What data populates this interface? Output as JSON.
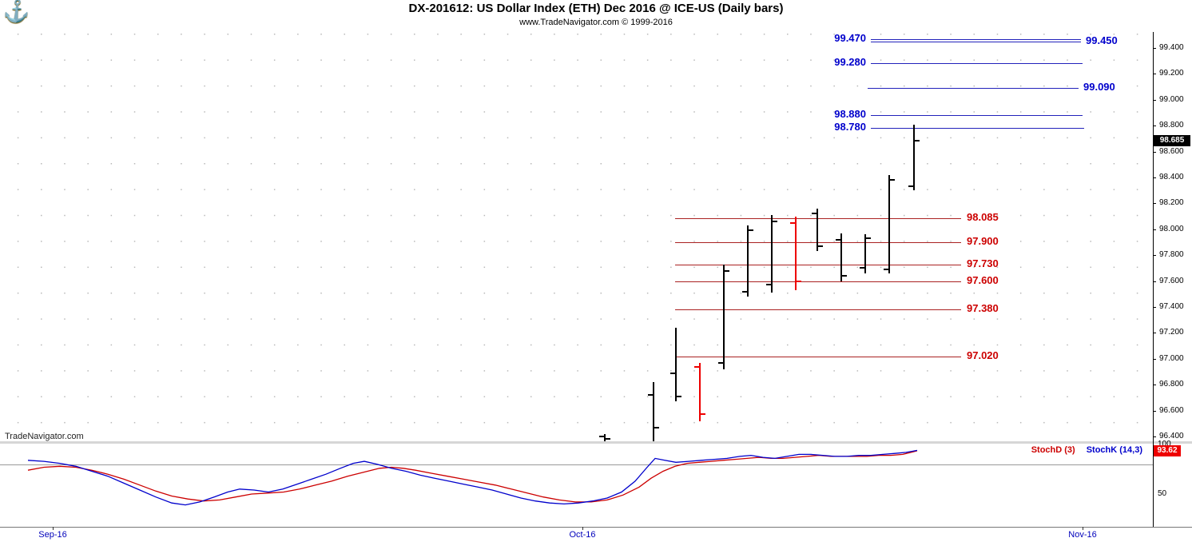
{
  "header": {
    "title": "DX-201612:  US Dollar Index (ETH) Dec 2016 @ ICE-US  (Daily bars)",
    "subtitle": "www.TradeNavigator.com © 1999-2016",
    "logo_icon": "anchor-logo"
  },
  "watermark": "TradeNavigator.com",
  "chart_data": {
    "type": "ohlc",
    "title": "DX-201612:  US Dollar Index (ETH) Dec 2016 @ ICE-US  (Daily bars)",
    "subtitle": "www.TradeNavigator.com © 1999-2016",
    "price_axis": {
      "min": 96.4,
      "max": 99.4,
      "step": 0.2,
      "ticks": [
        "99.400",
        "99.200",
        "99.000",
        "98.800",
        "98.600",
        "98.400",
        "98.200",
        "98.000",
        "97.800",
        "97.600",
        "97.400",
        "97.200",
        "97.000",
        "96.800",
        "96.600",
        "96.400"
      ]
    },
    "last_price": "98.685",
    "colors": {
      "up_bar": "#000000",
      "down_bar": "#ee0000",
      "resistance": "#2222bb",
      "resistance_label": "#0000cc",
      "support": "#aa2222",
      "support_label": "#cc0000",
      "last_price_badge_bg": "#000000",
      "indicator_badge_bg": "#ee0000"
    },
    "resistance_levels": [
      {
        "price": 99.47,
        "label": "99.470",
        "side": "left",
        "x1": 1090,
        "x2": 1353
      },
      {
        "price": 99.45,
        "label": "99.450",
        "side": "right",
        "x1": 1090,
        "x2": 1353
      },
      {
        "price": 99.28,
        "label": "99.280",
        "side": "left",
        "x1": 1090,
        "x2": 1355
      },
      {
        "price": 99.09,
        "label": "99.090",
        "side": "right",
        "x1": 1086,
        "x2": 1350
      },
      {
        "price": 98.88,
        "label": "98.880",
        "side": "left",
        "x1": 1090,
        "x2": 1355
      },
      {
        "price": 98.78,
        "label": "98.780",
        "side": "left",
        "x1": 1090,
        "x2": 1357
      }
    ],
    "support_levels": [
      {
        "price": 98.085,
        "label": "98.085",
        "x1": 845,
        "x2": 1203
      },
      {
        "price": 97.9,
        "label": "97.900",
        "x1": 845,
        "x2": 1203
      },
      {
        "price": 97.73,
        "label": "97.730",
        "x1": 845,
        "x2": 1203
      },
      {
        "price": 97.6,
        "label": "97.600",
        "x1": 845,
        "x2": 1203
      },
      {
        "price": 97.38,
        "label": "97.380",
        "x1": 845,
        "x2": 1203
      },
      {
        "price": 97.02,
        "label": "97.020",
        "x1": 845,
        "x2": 1203
      }
    ],
    "bars": [
      {
        "x": 757,
        "open": 96.4,
        "high": 96.42,
        "low": 96.36,
        "close": 96.38,
        "color": "black"
      },
      {
        "x": 818,
        "open": 96.72,
        "high": 96.82,
        "low": 96.36,
        "close": 96.47,
        "color": "black"
      },
      {
        "x": 846,
        "open": 96.89,
        "high": 97.24,
        "low": 96.67,
        "close": 96.71,
        "color": "black"
      },
      {
        "x": 876,
        "open": 96.94,
        "high": 96.97,
        "low": 96.52,
        "close": 96.57,
        "color": "red"
      },
      {
        "x": 906,
        "open": 96.97,
        "high": 97.73,
        "low": 96.92,
        "close": 97.68,
        "color": "black"
      },
      {
        "x": 936,
        "open": 97.52,
        "high": 98.03,
        "low": 97.48,
        "close": 97.99,
        "color": "black"
      },
      {
        "x": 966,
        "open": 97.57,
        "high": 98.11,
        "low": 97.51,
        "close": 98.06,
        "color": "black"
      },
      {
        "x": 996,
        "open": 98.05,
        "high": 98.1,
        "low": 97.53,
        "close": 97.6,
        "color": "red"
      },
      {
        "x": 1023,
        "open": 98.12,
        "high": 98.16,
        "low": 97.83,
        "close": 97.87,
        "color": "black"
      },
      {
        "x": 1053,
        "open": 97.92,
        "high": 97.97,
        "low": 97.6,
        "close": 97.64,
        "color": "black"
      },
      {
        "x": 1083,
        "open": 97.7,
        "high": 97.96,
        "low": 97.66,
        "close": 97.93,
        "color": "black"
      },
      {
        "x": 1113,
        "open": 97.69,
        "high": 98.42,
        "low": 97.66,
        "close": 98.38,
        "color": "black"
      },
      {
        "x": 1144,
        "open": 98.33,
        "high": 98.81,
        "low": 98.3,
        "close": 98.685,
        "color": "black"
      }
    ],
    "x_axis": {
      "labels": [
        {
          "label": "Sep-16",
          "x": 66
        },
        {
          "label": "Oct-16",
          "x": 729
        },
        {
          "label": "Nov-16",
          "x": 1355
        }
      ]
    },
    "indicator": {
      "name": "Stochastic",
      "legend": [
        {
          "label": "StochD (3)",
          "color": "#cc0000"
        },
        {
          "label": "StochK (14,3)",
          "color": "#0000cc"
        }
      ],
      "last_value": "93.62",
      "ref_line_value": 80,
      "axis_ticks": [
        {
          "value": 100,
          "label": "100"
        },
        {
          "value": 50,
          "label": "50"
        }
      ],
      "series": [
        {
          "name": "StochD",
          "color": "#cc0000",
          "points": [
            [
              35,
              74
            ],
            [
              55,
              77
            ],
            [
              75,
              78
            ],
            [
              95,
              77
            ],
            [
              115,
              74
            ],
            [
              135,
              70
            ],
            [
              155,
              65
            ],
            [
              175,
              59
            ],
            [
              195,
              53
            ],
            [
              215,
              48
            ],
            [
              235,
              45
            ],
            [
              255,
              43
            ],
            [
              275,
              44
            ],
            [
              295,
              47
            ],
            [
              315,
              50
            ],
            [
              335,
              51
            ],
            [
              355,
              52
            ],
            [
              375,
              55
            ],
            [
              395,
              59
            ],
            [
              415,
              63
            ],
            [
              435,
              68
            ],
            [
              455,
              72
            ],
            [
              475,
              76
            ],
            [
              490,
              77
            ],
            [
              505,
              76
            ],
            [
              520,
              74
            ],
            [
              540,
              71
            ],
            [
              560,
              68
            ],
            [
              580,
              65
            ],
            [
              600,
              62
            ],
            [
              620,
              59
            ],
            [
              640,
              55
            ],
            [
              660,
              51
            ],
            [
              680,
              47
            ],
            [
              700,
              44
            ],
            [
              720,
              42
            ],
            [
              740,
              42
            ],
            [
              760,
              44
            ],
            [
              780,
              49
            ],
            [
              800,
              57
            ],
            [
              815,
              66
            ],
            [
              830,
              73
            ],
            [
              845,
              78
            ],
            [
              860,
              81
            ],
            [
              875,
              82
            ],
            [
              890,
              83
            ],
            [
              905,
              84
            ],
            [
              920,
              85
            ],
            [
              935,
              86
            ],
            [
              950,
              87
            ],
            [
              965,
              86
            ],
            [
              980,
              86
            ],
            [
              995,
              87
            ],
            [
              1010,
              88
            ],
            [
              1025,
              89
            ],
            [
              1040,
              88
            ],
            [
              1055,
              88
            ],
            [
              1070,
              88
            ],
            [
              1085,
              88
            ],
            [
              1100,
              89
            ],
            [
              1115,
              89
            ],
            [
              1130,
              90
            ],
            [
              1148,
              93.6
            ]
          ]
        },
        {
          "name": "StochK",
          "color": "#0000cc",
          "points": [
            [
              35,
              84
            ],
            [
              55,
              83
            ],
            [
              75,
              81
            ],
            [
              95,
              78
            ],
            [
              115,
              73
            ],
            [
              135,
              68
            ],
            [
              155,
              61
            ],
            [
              175,
              54
            ],
            [
              195,
              47
            ],
            [
              215,
              41
            ],
            [
              232,
              39
            ],
            [
              250,
              42
            ],
            [
              268,
              47
            ],
            [
              285,
              52
            ],
            [
              300,
              55
            ],
            [
              318,
              54
            ],
            [
              336,
              52
            ],
            [
              354,
              55
            ],
            [
              372,
              60
            ],
            [
              390,
              65
            ],
            [
              408,
              70
            ],
            [
              426,
              76
            ],
            [
              442,
              81
            ],
            [
              456,
              83
            ],
            [
              472,
              80
            ],
            [
              490,
              76
            ],
            [
              508,
              73
            ],
            [
              526,
              69
            ],
            [
              544,
              66
            ],
            [
              562,
              63
            ],
            [
              580,
              60
            ],
            [
              598,
              57
            ],
            [
              616,
              54
            ],
            [
              634,
              50
            ],
            [
              652,
              46
            ],
            [
              670,
              43
            ],
            [
              688,
              41
            ],
            [
              706,
              40
            ],
            [
              724,
              41
            ],
            [
              742,
              43
            ],
            [
              760,
              46
            ],
            [
              778,
              52
            ],
            [
              795,
              63
            ],
            [
              810,
              77
            ],
            [
              820,
              86
            ],
            [
              832,
              84
            ],
            [
              846,
              82
            ],
            [
              862,
              83
            ],
            [
              878,
              84
            ],
            [
              894,
              85
            ],
            [
              910,
              86
            ],
            [
              926,
              88
            ],
            [
              940,
              89
            ],
            [
              955,
              87
            ],
            [
              970,
              86
            ],
            [
              985,
              88
            ],
            [
              1000,
              90
            ],
            [
              1015,
              90
            ],
            [
              1030,
              89
            ],
            [
              1045,
              88
            ],
            [
              1060,
              88
            ],
            [
              1075,
              89
            ],
            [
              1090,
              89
            ],
            [
              1105,
              90
            ],
            [
              1120,
              91
            ],
            [
              1134,
              92
            ],
            [
              1148,
              94
            ]
          ]
        }
      ]
    }
  }
}
